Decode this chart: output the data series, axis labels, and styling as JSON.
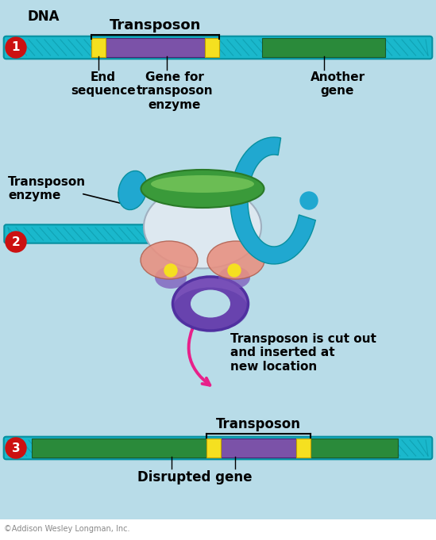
{
  "bg_color": "#b8dce8",
  "white_bg": "#ffffff",
  "dna_cyan": "#1ab8cc",
  "dna_cyan_dark": "#0890a0",
  "purple_gene": "#7b52a8",
  "green_gene": "#2a8a3a",
  "green_gene_light": "#3aaa4a",
  "yellow_end": "#f5e020",
  "red_circle": "#cc1111",
  "pink_arrow": "#e8208a",
  "enzyme_green_dark": "#2a7a28",
  "enzyme_green": "#3a9a3a",
  "enzyme_green_light": "#80cc60",
  "enzyme_blue": "#20a8d0",
  "enzyme_white": "#dde8f0",
  "enzyme_pink": "#e89080",
  "enzyme_purple": "#7850b8",
  "enzyme_purple_dark": "#5030a0",
  "label_dna": "DNA",
  "label_transposon": "Transposon",
  "label_end": "End\nsequence",
  "label_gene_enzyme": "Gene for\ntransposon\nenzyme",
  "label_another": "Another\ngene",
  "label_transposon_enzyme": "Transposon\nenzyme",
  "label_cut": "Transposon is cut out\nand inserted at\nnew location",
  "label_transposon3": "Transposon",
  "label_disrupted": "Disrupted gene",
  "copyright": "©Addison Wesley Longman, Inc.",
  "fig_width": 5.49,
  "fig_height": 6.81,
  "dpi": 100
}
